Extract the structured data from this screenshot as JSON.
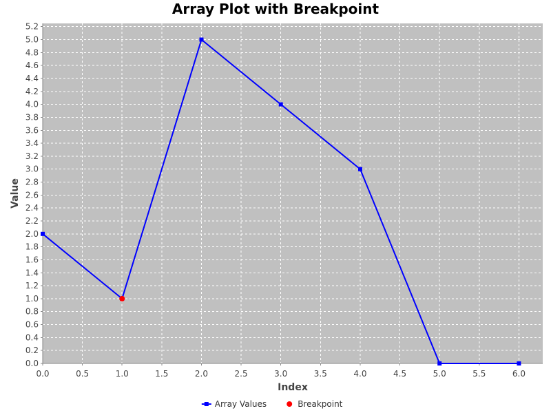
{
  "chart_data": {
    "type": "line",
    "title": "Array Plot with Breakpoint",
    "xlabel": "Index",
    "ylabel": "Value",
    "xlim": [
      0.0,
      6.3
    ],
    "ylim": [
      0.0,
      5.25
    ],
    "x_ticks": [
      0.0,
      0.5,
      1.0,
      1.5,
      2.0,
      2.5,
      3.0,
      3.5,
      4.0,
      4.5,
      5.0,
      5.5,
      6.0
    ],
    "y_ticks": [
      0.0,
      0.2,
      0.4,
      0.6,
      0.8,
      1.0,
      1.2,
      1.4,
      1.6,
      1.8,
      2.0,
      2.2,
      2.4,
      2.6,
      2.8,
      3.0,
      3.2,
      3.4,
      3.6,
      3.8,
      4.0,
      4.2,
      4.4,
      4.6,
      4.8,
      5.0,
      5.2
    ],
    "grid": true,
    "legend_position": "bottom-center",
    "series": [
      {
        "name": "Array Values",
        "color": "#0000ff",
        "marker": "square",
        "x": [
          0,
          1,
          2,
          3,
          4,
          5,
          6
        ],
        "y": [
          2,
          1,
          5,
          4,
          3,
          0,
          0
        ]
      },
      {
        "name": "Breakpoint",
        "color": "#ff0000",
        "marker": "circle",
        "x": [
          1
        ],
        "y": [
          1
        ]
      }
    ],
    "colors": {
      "plot_background": "#c0c0c0",
      "gridline": "#ffffff",
      "axis": "#888888"
    }
  }
}
